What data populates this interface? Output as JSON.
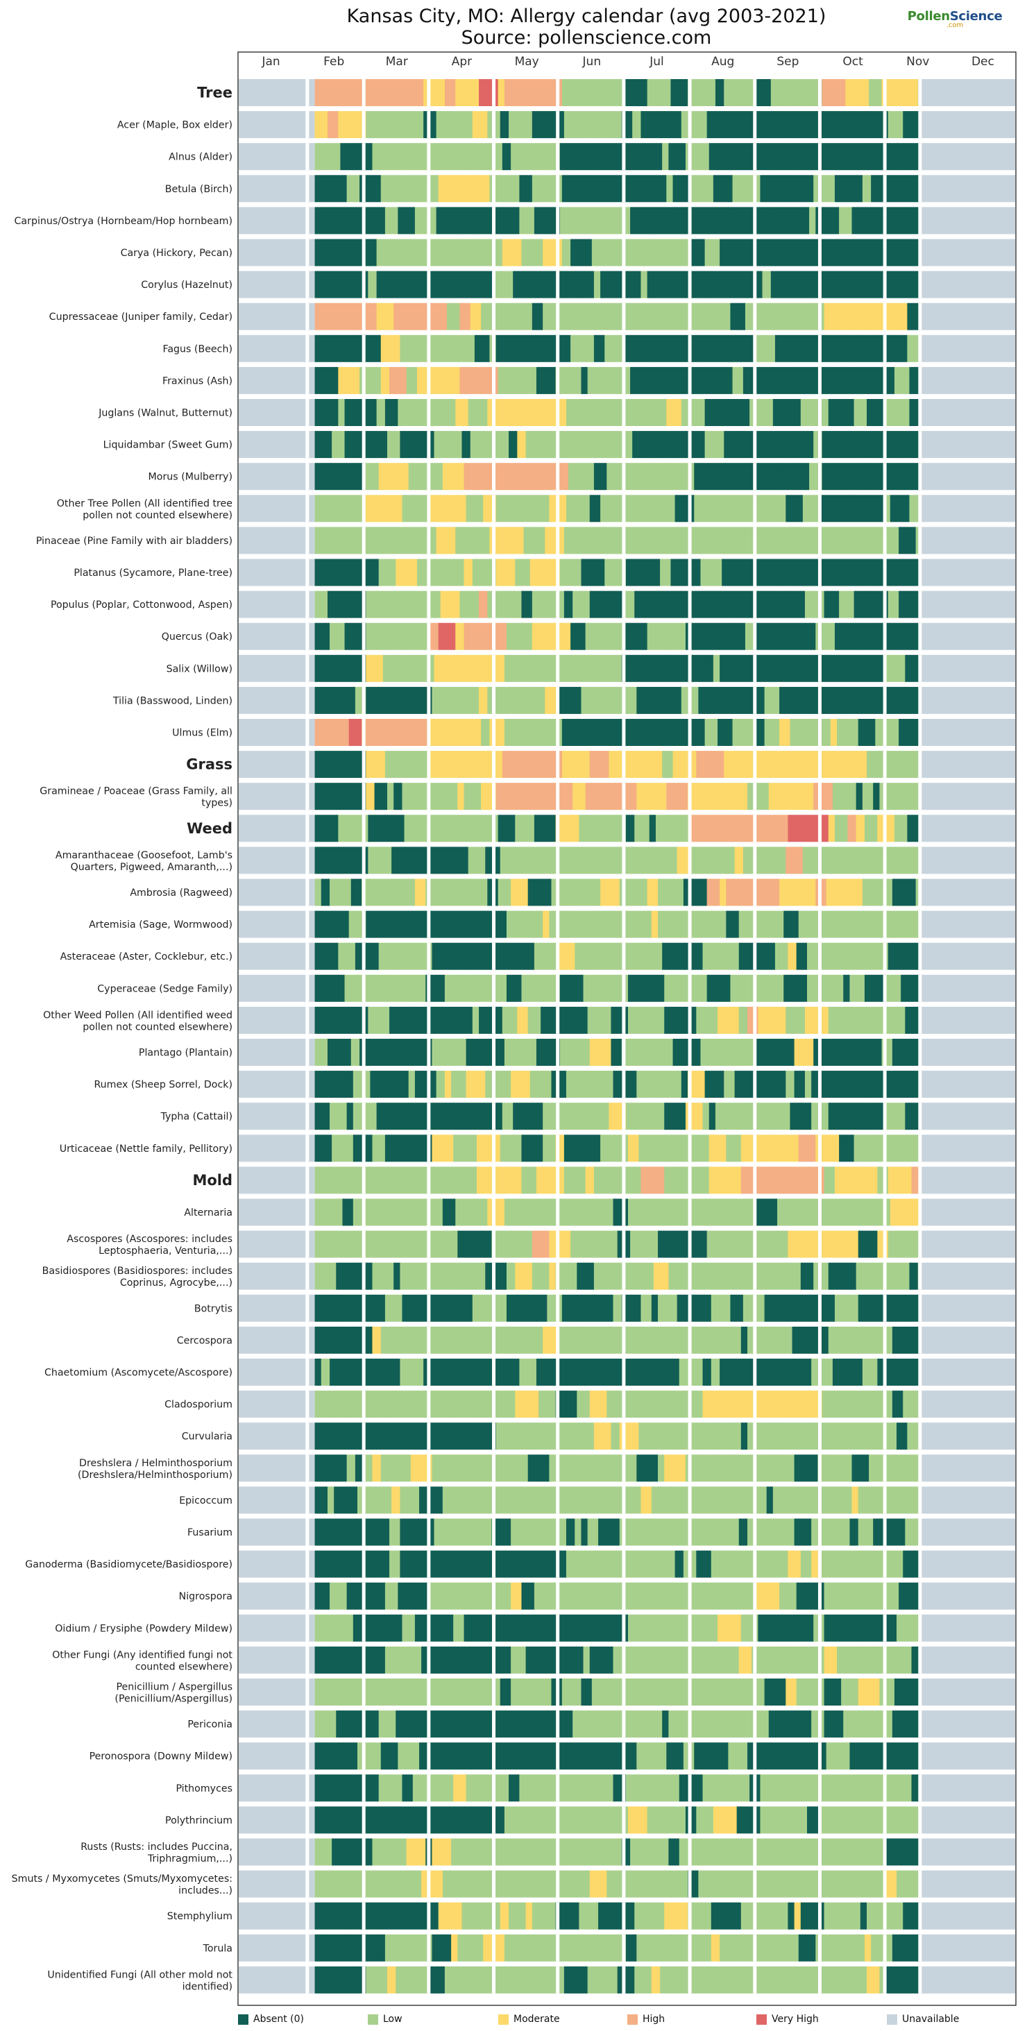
{
  "title": "Kansas City, MO: Allergy calendar (avg 2003-2021)",
  "subtitle": "Source: pollenscience.com",
  "logo": {
    "part1": "Pollen",
    "part2": "Science",
    "sub": ".com"
  },
  "months": [
    "Jan",
    "Feb",
    "Mar",
    "Apr",
    "May",
    "Jun",
    "Jul",
    "Aug",
    "Sep",
    "Oct",
    "Nov",
    "Dec"
  ],
  "legend": [
    {
      "label": "Absent (0)",
      "color": "#115e54"
    },
    {
      "label": "Low",
      "color": "#a8d08d"
    },
    {
      "label": "Moderate",
      "color": "#fcd96a"
    },
    {
      "label": "High",
      "color": "#f4af84"
    },
    {
      "label": "Very High",
      "color": "#e06666"
    },
    {
      "label": "Unavailable",
      "color": "#c8d4dd"
    }
  ],
  "chart_data": {
    "type": "heatmap",
    "title": "Kansas City, MO: Allergy calendar (avg 2003-2021)",
    "x_axis": "months Jan-Dec (weekly resolution)",
    "data_window": {
      "start": "early Feb",
      "end": "mid Nov",
      "unavailable": "Jan, late Nov, Dec"
    },
    "levels": [
      "Absent (0)",
      "Low",
      "Moderate",
      "High",
      "Very High",
      "Unavailable"
    ],
    "rows": [
      {
        "name": "Tree",
        "group": true,
        "profile": {
          "feb": 3,
          "mar": 3,
          "apr": 3,
          "may": 3,
          "jun": 1,
          "jul": 1,
          "aug": 1,
          "sep": 1,
          "oct": 2,
          "nov": 1
        }
      },
      {
        "name": "Acer (Maple, Box elder)",
        "profile": {
          "feb": 2,
          "mar": 1,
          "apr": 1,
          "may": 0,
          "jun": 0,
          "jul": 0,
          "aug": 0,
          "sep": 0,
          "oct": 0,
          "nov": 0
        }
      },
      {
        "name": "Alnus (Alder)",
        "profile": {
          "feb": 0,
          "mar": 1,
          "apr": 1,
          "may": 1,
          "jun": 0,
          "jul": 0,
          "aug": 0,
          "sep": 0,
          "oct": 0,
          "nov": 0
        }
      },
      {
        "name": "Betula (Birch)",
        "profile": {
          "feb": 0,
          "mar": 1,
          "apr": 2,
          "may": 1,
          "jun": 0,
          "jul": 0,
          "aug": 0,
          "sep": 0,
          "oct": 0,
          "nov": 0
        }
      },
      {
        "name": "Carpinus/Ostrya (Hornbeam/Hop hornbeam)",
        "profile": {
          "feb": 0,
          "mar": 0,
          "apr": 0,
          "may": 0,
          "jun": 1,
          "jul": 0,
          "aug": 0,
          "sep": 0,
          "oct": 0,
          "nov": 0
        }
      },
      {
        "name": "Carya (Hickory, Pecan)",
        "profile": {
          "feb": 0,
          "mar": 1,
          "apr": 1,
          "may": 2,
          "jun": 1,
          "jul": 1,
          "aug": 0,
          "sep": 0,
          "oct": 0,
          "nov": 0
        }
      },
      {
        "name": "Corylus (Hazelnut)",
        "profile": {
          "feb": 0,
          "mar": 0,
          "apr": 0,
          "may": 0,
          "jun": 0,
          "jul": 0,
          "aug": 0,
          "sep": 0,
          "oct": 0,
          "nov": 0
        }
      },
      {
        "name": "Cupressaceae (Juniper family, Cedar)",
        "profile": {
          "feb": 3,
          "mar": 3,
          "apr": 2,
          "may": 1,
          "jun": 1,
          "jul": 1,
          "aug": 1,
          "sep": 1,
          "oct": 2,
          "nov": 1
        }
      },
      {
        "name": "Fagus (Beech)",
        "profile": {
          "feb": 0,
          "mar": 1,
          "apr": 1,
          "may": 0,
          "jun": 0,
          "jul": 0,
          "aug": 0,
          "sep": 0,
          "oct": 0,
          "nov": 0
        }
      },
      {
        "name": "Fraxinus (Ash)",
        "profile": {
          "feb": 1,
          "mar": 2,
          "apr": 3,
          "may": 1,
          "jun": 1,
          "jul": 0,
          "aug": 0,
          "sep": 0,
          "oct": 0,
          "nov": 0
        }
      },
      {
        "name": "Juglans (Walnut, Butternut)",
        "profile": {
          "feb": 0,
          "mar": 1,
          "apr": 1,
          "may": 2,
          "jun": 1,
          "jul": 1,
          "aug": 0,
          "sep": 0,
          "oct": 0,
          "nov": 0
        }
      },
      {
        "name": "Liquidambar (Sweet Gum)",
        "profile": {
          "feb": 0,
          "mar": 0,
          "apr": 1,
          "may": 1,
          "jun": 1,
          "jul": 0,
          "aug": 0,
          "sep": 0,
          "oct": 0,
          "nov": 0
        }
      },
      {
        "name": "Morus (Mulberry)",
        "profile": {
          "feb": 0,
          "mar": 2,
          "apr": 3,
          "may": 3,
          "jun": 1,
          "jul": 1,
          "aug": 0,
          "sep": 0,
          "oct": 0,
          "nov": 0
        }
      },
      {
        "name": "Other Tree Pollen (All identified tree pollen not counted elsewhere)",
        "profile": {
          "feb": 1,
          "mar": 2,
          "apr": 2,
          "may": 2,
          "jun": 1,
          "jul": 1,
          "aug": 1,
          "sep": 1,
          "oct": 0,
          "nov": 0
        }
      },
      {
        "name": "Pinaceae (Pine Family with air bladders)",
        "profile": {
          "feb": 1,
          "mar": 1,
          "apr": 2,
          "may": 2,
          "jun": 1,
          "jul": 1,
          "aug": 1,
          "sep": 1,
          "oct": 1,
          "nov": 1
        }
      },
      {
        "name": "Platanus (Sycamore, Plane-tree)",
        "profile": {
          "feb": 0,
          "mar": 1,
          "apr": 2,
          "may": 2,
          "jun": 1,
          "jul": 0,
          "aug": 0,
          "sep": 0,
          "oct": 0,
          "nov": 0
        }
      },
      {
        "name": "Populus (Poplar, Cottonwood, Aspen)",
        "profile": {
          "feb": 0,
          "mar": 1,
          "apr": 2,
          "may": 1,
          "jun": 0,
          "jul": 0,
          "aug": 0,
          "sep": 0,
          "oct": 0,
          "nov": 0
        }
      },
      {
        "name": "Quercus (Oak)",
        "profile": {
          "feb": 0,
          "mar": 1,
          "apr": 3,
          "may": 2,
          "jun": 1,
          "jul": 0,
          "aug": 0,
          "sep": 0,
          "oct": 0,
          "nov": 0
        }
      },
      {
        "name": "Salix (Willow)",
        "profile": {
          "feb": 0,
          "mar": 1,
          "apr": 2,
          "may": 1,
          "jun": 1,
          "jul": 0,
          "aug": 0,
          "sep": 0,
          "oct": 0,
          "nov": 0
        }
      },
      {
        "name": "Tilia (Basswood, Linden)",
        "profile": {
          "feb": 0,
          "mar": 0,
          "apr": 1,
          "may": 1,
          "jun": 1,
          "jul": 0,
          "aug": 0,
          "sep": 0,
          "oct": 0,
          "nov": 0
        }
      },
      {
        "name": "Ulmus (Elm)",
        "profile": {
          "feb": 3,
          "mar": 3,
          "apr": 2,
          "may": 1,
          "jun": 0,
          "jul": 0,
          "aug": 0,
          "sep": 1,
          "oct": 1,
          "nov": 0
        }
      },
      {
        "name": "Grass",
        "group": true,
        "profile": {
          "feb": 0,
          "mar": 1,
          "apr": 2,
          "may": 3,
          "jun": 3,
          "jul": 2,
          "aug": 2,
          "sep": 2,
          "oct": 1,
          "nov": 1
        }
      },
      {
        "name": "Gramineae / Poaceae (Grass Family, all types)",
        "profile": {
          "feb": 0,
          "mar": 1,
          "apr": 2,
          "may": 3,
          "jun": 3,
          "jul": 2,
          "aug": 2,
          "sep": 2,
          "oct": 1,
          "nov": 1
        }
      },
      {
        "name": "Weed",
        "group": true,
        "profile": {
          "feb": 1,
          "mar": 1,
          "apr": 1,
          "may": 1,
          "jun": 1,
          "jul": 1,
          "aug": 3,
          "sep": 3,
          "oct": 2,
          "nov": 1
        }
      },
      {
        "name": "Amaranthaceae (Goosefoot, Lamb's Quarters, Pigweed, Amaranth,...)",
        "profile": {
          "feb": 0,
          "mar": 0,
          "apr": 0,
          "may": 1,
          "jun": 1,
          "jul": 1,
          "aug": 2,
          "sep": 2,
          "oct": 1,
          "nov": 1
        }
      },
      {
        "name": "Ambrosia (Ragweed)",
        "profile": {
          "feb": 1,
          "mar": 1,
          "apr": 1,
          "may": 1,
          "jun": 1,
          "jul": 1,
          "aug": 3,
          "sep": 3,
          "oct": 2,
          "nov": 1
        }
      },
      {
        "name": "Artemisia (Sage, Wormwood)",
        "profile": {
          "feb": 0,
          "mar": 0,
          "apr": 0,
          "may": 1,
          "jun": 1,
          "jul": 1,
          "aug": 1,
          "sep": 1,
          "oct": 1,
          "nov": 1
        }
      },
      {
        "name": "Asteraceae (Aster, Cocklebur, etc.)",
        "profile": {
          "feb": 0,
          "mar": 1,
          "apr": 0,
          "may": 1,
          "jun": 1,
          "jul": 1,
          "aug": 1,
          "sep": 1,
          "oct": 1,
          "nov": 0
        }
      },
      {
        "name": "Cyperaceae (Sedge Family)",
        "profile": {
          "feb": 0,
          "mar": 1,
          "apr": 1,
          "may": 1,
          "jun": 1,
          "jul": 1,
          "aug": 1,
          "sep": 1,
          "oct": 0,
          "nov": 0
        }
      },
      {
        "name": "Other Weed Pollen (All identified weed pollen not counted elsewhere)",
        "profile": {
          "feb": 0,
          "mar": 0,
          "apr": 0,
          "may": 1,
          "jun": 1,
          "jul": 1,
          "aug": 2,
          "sep": 2,
          "oct": 1,
          "nov": 1
        }
      },
      {
        "name": "Plantago (Plantain)",
        "profile": {
          "feb": 0,
          "mar": 0,
          "apr": 1,
          "may": 1,
          "jun": 1,
          "jul": 1,
          "aug": 1,
          "sep": 1,
          "oct": 0,
          "nov": 0
        }
      },
      {
        "name": "Rumex (Sheep Sorrel, Dock)",
        "profile": {
          "feb": 0,
          "mar": 0,
          "apr": 1,
          "may": 1,
          "jun": 1,
          "jul": 1,
          "aug": 0,
          "sep": 0,
          "oct": 0,
          "nov": 0
        }
      },
      {
        "name": "Typha (Cattail)",
        "profile": {
          "feb": 0,
          "mar": 0,
          "apr": 0,
          "may": 0,
          "jun": 1,
          "jul": 1,
          "aug": 1,
          "sep": 1,
          "oct": 0,
          "nov": 0
        }
      },
      {
        "name": "Urticaceae (Nettle family, Pellitory)",
        "profile": {
          "feb": 0,
          "mar": 0,
          "apr": 1,
          "may": 1,
          "jun": 1,
          "jul": 1,
          "aug": 2,
          "sep": 2,
          "oct": 1,
          "nov": 0
        }
      },
      {
        "name": "Mold",
        "group": true,
        "profile": {
          "feb": 1,
          "mar": 1,
          "apr": 1,
          "may": 2,
          "jun": 2,
          "jul": 2,
          "aug": 3,
          "sep": 3,
          "oct": 2,
          "nov": 2
        }
      },
      {
        "name": "Alternaria",
        "profile": {
          "feb": 1,
          "mar": 1,
          "apr": 1,
          "may": 1,
          "jun": 1,
          "jul": 1,
          "aug": 1,
          "sep": 1,
          "oct": 1,
          "nov": 1
        }
      },
      {
        "name": "Ascospores (Ascospores: includes Leptosphaeria, Venturia,...)",
        "profile": {
          "feb": 1,
          "mar": 1,
          "apr": 1,
          "may": 2,
          "jun": 1,
          "jul": 1,
          "aug": 1,
          "sep": 2,
          "oct": 1,
          "nov": 1
        }
      },
      {
        "name": "Basidiospores (Basidiospores: includes Coprinus, Agrocybe,...)",
        "profile": {
          "feb": 0,
          "mar": 1,
          "apr": 1,
          "may": 1,
          "jun": 1,
          "jul": 1,
          "aug": 1,
          "sep": 1,
          "oct": 1,
          "nov": 1
        }
      },
      {
        "name": "Botrytis",
        "profile": {
          "feb": 0,
          "mar": 0,
          "apr": 0,
          "may": 0,
          "jun": 0,
          "jul": 0,
          "aug": 0,
          "sep": 0,
          "oct": 0,
          "nov": 0
        }
      },
      {
        "name": "Cercospora",
        "profile": {
          "feb": 0,
          "mar": 1,
          "apr": 1,
          "may": 1,
          "jun": 1,
          "jul": 1,
          "aug": 1,
          "sep": 1,
          "oct": 1,
          "nov": 0
        }
      },
      {
        "name": "Chaetomium (Ascomycete/Ascospore)",
        "profile": {
          "feb": 0,
          "mar": 0,
          "apr": 0,
          "may": 0,
          "jun": 0,
          "jul": 0,
          "aug": 0,
          "sep": 0,
          "oct": 0,
          "nov": 0
        }
      },
      {
        "name": "Cladosporium",
        "profile": {
          "feb": 1,
          "mar": 1,
          "apr": 1,
          "may": 1,
          "jun": 1,
          "jul": 1,
          "aug": 2,
          "sep": 2,
          "oct": 1,
          "nov": 1
        }
      },
      {
        "name": "Curvularia",
        "profile": {
          "feb": 0,
          "mar": 0,
          "apr": 0,
          "may": 1,
          "jun": 1,
          "jul": 1,
          "aug": 1,
          "sep": 1,
          "oct": 1,
          "nov": 0
        }
      },
      {
        "name": "Dreshslera / Helminthosporium (Dreshslera/Helminthosporium)",
        "profile": {
          "feb": 0,
          "mar": 1,
          "apr": 1,
          "may": 1,
          "jun": 1,
          "jul": 1,
          "aug": 1,
          "sep": 1,
          "oct": 1,
          "nov": 1
        }
      },
      {
        "name": "Epicoccum",
        "profile": {
          "feb": 1,
          "mar": 1,
          "apr": 1,
          "may": 1,
          "jun": 1,
          "jul": 1,
          "aug": 1,
          "sep": 1,
          "oct": 1,
          "nov": 1
        }
      },
      {
        "name": "Fusarium",
        "profile": {
          "feb": 0,
          "mar": 0,
          "apr": 1,
          "may": 1,
          "jun": 1,
          "jul": 1,
          "aug": 1,
          "sep": 1,
          "oct": 0,
          "nov": 0
        }
      },
      {
        "name": "Ganoderma (Basidiomycete/Basidiospore)",
        "profile": {
          "feb": 0,
          "mar": 0,
          "apr": 0,
          "may": 0,
          "jun": 1,
          "jul": 1,
          "aug": 1,
          "sep": 1,
          "oct": 1,
          "nov": 0
        }
      },
      {
        "name": "Nigrospora",
        "profile": {
          "feb": 0,
          "mar": 0,
          "apr": 1,
          "may": 1,
          "jun": 1,
          "jul": 1,
          "aug": 1,
          "sep": 1,
          "oct": 1,
          "nov": 0
        }
      },
      {
        "name": "Oidium / Erysiphe (Powdery Mildew)",
        "profile": {
          "feb": 0,
          "mar": 0,
          "apr": 0,
          "may": 0,
          "jun": 0,
          "jul": 1,
          "aug": 1,
          "sep": 0,
          "oct": 0,
          "nov": 0
        }
      },
      {
        "name": "Other Fungi (Any identified fungi not counted elsewhere)",
        "profile": {
          "feb": 0,
          "mar": 0,
          "apr": 0,
          "may": 0,
          "jun": 1,
          "jul": 1,
          "aug": 1,
          "sep": 1,
          "oct": 1,
          "nov": 0
        }
      },
      {
        "name": "Penicillium / Aspergillus (Penicillium/Aspergillus)",
        "profile": {
          "feb": 1,
          "mar": 1,
          "apr": 1,
          "may": 1,
          "jun": 1,
          "jul": 1,
          "aug": 1,
          "sep": 1,
          "oct": 1,
          "nov": 0
        }
      },
      {
        "name": "Periconia",
        "profile": {
          "feb": 0,
          "mar": 0,
          "apr": 0,
          "may": 0,
          "jun": 1,
          "jul": 1,
          "aug": 1,
          "sep": 1,
          "oct": 1,
          "nov": 0
        }
      },
      {
        "name": "Peronospora (Downy Mildew)",
        "profile": {
          "feb": 0,
          "mar": 0,
          "apr": 0,
          "may": 0,
          "jun": 0,
          "jul": 1,
          "aug": 0,
          "sep": 0,
          "oct": 0,
          "nov": 0
        }
      },
      {
        "name": "Pithomyces",
        "profile": {
          "feb": 0,
          "mar": 1,
          "apr": 1,
          "may": 1,
          "jun": 1,
          "jul": 1,
          "aug": 1,
          "sep": 1,
          "oct": 1,
          "nov": 1
        }
      },
      {
        "name": "Polythrincium",
        "profile": {
          "feb": 0,
          "mar": 0,
          "apr": 0,
          "may": 1,
          "jun": 1,
          "jul": 1,
          "aug": 1,
          "sep": 1,
          "oct": 1,
          "nov": 0
        }
      },
      {
        "name": "Rusts (Rusts: includes Puccina, Triphragmium,...)",
        "profile": {
          "feb": 0,
          "mar": 1,
          "apr": 1,
          "may": 1,
          "jun": 1,
          "jul": 1,
          "aug": 1,
          "sep": 1,
          "oct": 1,
          "nov": 0
        }
      },
      {
        "name": "Smuts / Myxomycetes (Smuts/Myxomycetes: includes...)",
        "profile": {
          "feb": 1,
          "mar": 1,
          "apr": 1,
          "may": 1,
          "jun": 1,
          "jul": 1,
          "aug": 1,
          "sep": 1,
          "oct": 1,
          "nov": 1
        }
      },
      {
        "name": "Stemphylium",
        "profile": {
          "feb": 0,
          "mar": 0,
          "apr": 1,
          "may": 1,
          "jun": 1,
          "jul": 1,
          "aug": 1,
          "sep": 1,
          "oct": 1,
          "nov": 0
        }
      },
      {
        "name": "Torula",
        "profile": {
          "feb": 0,
          "mar": 1,
          "apr": 1,
          "may": 1,
          "jun": 1,
          "jul": 1,
          "aug": 1,
          "sep": 1,
          "oct": 1,
          "nov": 0
        }
      },
      {
        "name": "Unidentified Fungi (All other mold not identified)",
        "profile": {
          "feb": 0,
          "mar": 1,
          "apr": 1,
          "may": 1,
          "jun": 1,
          "jul": 1,
          "aug": 1,
          "sep": 1,
          "oct": 1,
          "nov": 0
        }
      }
    ]
  }
}
